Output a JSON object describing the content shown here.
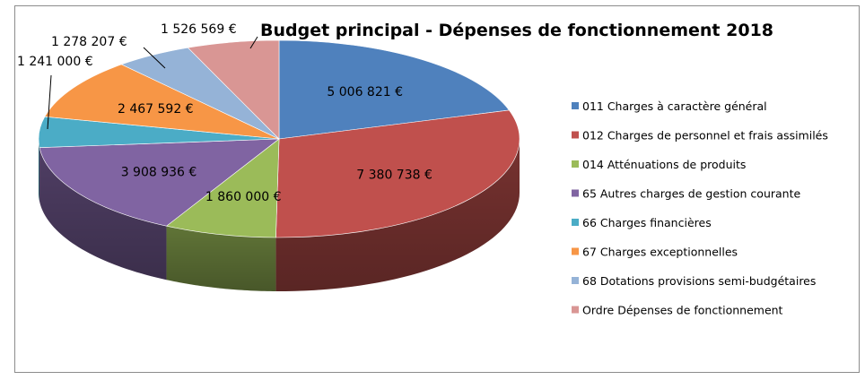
{
  "chart_data": {
    "type": "pie",
    "title": "Budget principal - Dépenses de fonctionnement 2018",
    "categories": [
      "011 Charges à caractère général",
      "012 Charges de personnel et frais assimilés",
      "014 Atténuations de produits",
      "65 Autres charges de gestion courante",
      "66 Charges financières",
      "67 Charges exceptionnelles",
      "68 Dotations provisions semi-budgétaires",
      "Ordre Dépenses de fonctionnement"
    ],
    "values": [
      5006821,
      7380738,
      1860000,
      3908936,
      1241000,
      2467592,
      1278207,
      1526569
    ],
    "data_labels": [
      "5 006 821 €",
      "7 380 738 €",
      "1 860 000 €",
      "3 908 936 €",
      "1 241 000 €",
      "2 467 592 €",
      "1 278 207 €",
      "1 526 569 €"
    ],
    "colors": [
      "#4f81bd",
      "#c0504d",
      "#9bbb59",
      "#8064a2",
      "#4bacc6",
      "#f79646",
      "#95b3d7",
      "#d99694"
    ],
    "legend_position": "right",
    "three_d": true
  }
}
